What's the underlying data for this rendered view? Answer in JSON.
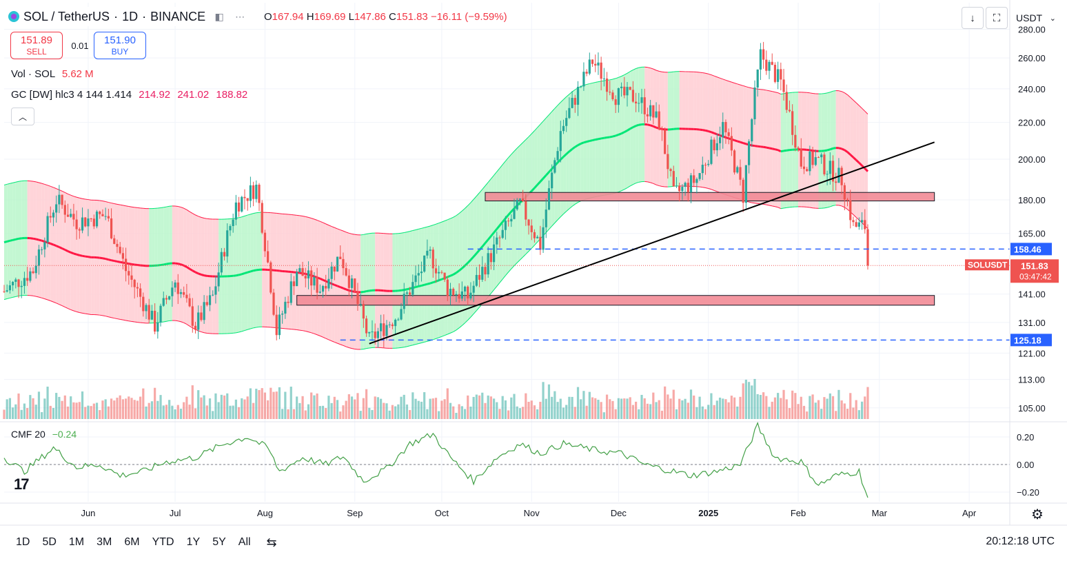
{
  "header": {
    "symbol": "SOL / TetherUS",
    "separator": "·",
    "interval": "1D",
    "exchange": "BINANCE",
    "ohlc_label_o": "O",
    "ohlc": {
      "o_label": "O",
      "o": "167.94",
      "h_label": "H",
      "h": "169.69",
      "l_label": "L",
      "l": "147.86",
      "c_label": "C",
      "c": "151.83",
      "change": "−16.11 (−9.59%)"
    }
  },
  "trade": {
    "sell_price": "151.89",
    "sell_label": "SELL",
    "spread": "0.01",
    "buy_price": "151.90",
    "buy_label": "BUY"
  },
  "legend": {
    "vol_label": "Vol · SOL",
    "vol_value": "5.62 M",
    "gc_label": "GC [DW] hlc3 4 144 1.414",
    "gc_v1": "214.92",
    "gc_v2": "241.02",
    "gc_v3": "188.82",
    "cmf_label": "CMF 20",
    "cmf_value": "−0.24"
  },
  "toolbar": {
    "currency": "USDT",
    "download_icon": "download-icon",
    "fullscreen_icon": "fullscreen-icon",
    "settings_icon": "gear-icon",
    "calendar_icon": "calendar-range-icon"
  },
  "timeframes": [
    "1D",
    "5D",
    "1M",
    "3M",
    "6M",
    "YTD",
    "1Y",
    "5Y",
    "All"
  ],
  "clock": "20:12:18 UTC",
  "colors": {
    "up": "#26a69a",
    "down": "#ef5350",
    "band_green": "#b9f6ca",
    "band_pink": "#ffcdd2",
    "basis_green": "#00e676",
    "basis_pink": "#ff1744",
    "cmf": "#43a047",
    "blue": "#2962ff"
  },
  "chart_data": {
    "type": "candlestick",
    "symbol": "SOLUSDT",
    "last_price": "151.83",
    "countdown": "03:47:42",
    "price_axis": {
      "scale": "log",
      "ticks": [
        "280.00",
        "260.00",
        "240.00",
        "220.00",
        "200.00",
        "180.00",
        "165.00",
        "141.00",
        "131.00",
        "121.00",
        "113.00",
        "105.00"
      ],
      "range": [
        102,
        300
      ]
    },
    "cmf_axis": {
      "ticks": [
        "0.20",
        "0.00",
        "−0.20"
      ],
      "range": [
        -0.27,
        0.3
      ]
    },
    "x_labels": [
      "Jun",
      "Jul",
      "Aug",
      "Sep",
      "Oct",
      "Nov",
      "Dec",
      "2025",
      "Feb",
      "Mar",
      "Apr"
    ],
    "date_range": [
      "2024-05-03",
      "2025-04-15"
    ],
    "horizontal_levels": [
      {
        "value": 158.46,
        "label": "158.46",
        "style": "dashed"
      },
      {
        "value": 125.18,
        "label": "125.18",
        "style": "dashed"
      }
    ],
    "zones": [
      {
        "from": "2024-10-16",
        "to": "2025-03-20",
        "low": 179.5,
        "high": 183.5
      },
      {
        "from": "2024-08-12",
        "to": "2025-03-20",
        "low": 137,
        "high": 140.5
      }
    ],
    "trendline": [
      [
        "2024-09-06",
        124
      ],
      [
        "2025-03-20",
        209
      ]
    ],
    "key_points": [
      [
        "2024-05-03",
        142
      ],
      [
        "2024-05-13",
        150
      ],
      [
        "2024-05-21",
        180
      ],
      [
        "2024-05-28",
        170
      ],
      [
        "2024-06-07",
        173
      ],
      [
        "2024-06-14",
        150
      ],
      [
        "2024-06-24",
        130
      ],
      [
        "2024-07-01",
        146
      ],
      [
        "2024-07-08",
        130
      ],
      [
        "2024-07-14",
        140
      ],
      [
        "2024-07-22",
        178
      ],
      [
        "2024-07-29",
        186
      ],
      [
        "2024-08-05",
        128
      ],
      [
        "2024-08-12",
        150
      ],
      [
        "2024-08-20",
        143
      ],
      [
        "2024-08-27",
        156
      ],
      [
        "2024-09-06",
        125
      ],
      [
        "2024-09-15",
        133
      ],
      [
        "2024-09-27",
        156
      ],
      [
        "2024-10-03",
        143
      ],
      [
        "2024-10-10",
        140
      ],
      [
        "2024-10-18",
        156
      ],
      [
        "2024-10-28",
        178
      ],
      [
        "2024-11-04",
        160
      ],
      [
        "2024-11-11",
        215
      ],
      [
        "2024-11-22",
        258
      ],
      [
        "2024-11-30",
        236
      ],
      [
        "2024-12-07",
        235
      ],
      [
        "2024-12-15",
        220
      ],
      [
        "2024-12-20",
        182
      ],
      [
        "2024-12-28",
        190
      ],
      [
        "2025-01-06",
        218
      ],
      [
        "2025-01-13",
        182
      ],
      [
        "2025-01-19",
        262
      ],
      [
        "2025-01-26",
        244
      ],
      [
        "2025-02-02",
        198
      ],
      [
        "2025-02-07",
        200
      ],
      [
        "2025-02-16",
        190
      ],
      [
        "2025-02-20",
        168
      ],
      [
        "2025-02-24",
        168
      ],
      [
        "2025-02-25",
        151.83
      ]
    ],
    "series": [
      {
        "name": "Vol · SOL",
        "type": "volume"
      },
      {
        "name": "GC [DW]",
        "type": "band"
      },
      {
        "name": "CMF 20",
        "type": "line",
        "points": [
          [
            "2024-05-03",
            0.05
          ],
          [
            "2024-05-10",
            -0.05
          ],
          [
            "2024-05-20",
            0.12
          ],
          [
            "2024-05-28",
            -0.02
          ],
          [
            "2024-06-05",
            0.0
          ],
          [
            "2024-06-12",
            -0.08
          ],
          [
            "2024-06-20",
            -0.05
          ],
          [
            "2024-06-28",
            0.02
          ],
          [
            "2024-07-08",
            0.05
          ],
          [
            "2024-07-18",
            0.15
          ],
          [
            "2024-07-26",
            0.2
          ],
          [
            "2024-08-02",
            0.12
          ],
          [
            "2024-08-06",
            -0.05
          ],
          [
            "2024-08-14",
            0.05
          ],
          [
            "2024-08-22",
            0.0
          ],
          [
            "2024-08-28",
            0.06
          ],
          [
            "2024-09-04",
            -0.12
          ],
          [
            "2024-09-12",
            -0.03
          ],
          [
            "2024-09-20",
            0.15
          ],
          [
            "2024-09-28",
            0.22
          ],
          [
            "2024-10-04",
            0.05
          ],
          [
            "2024-10-12",
            -0.12
          ],
          [
            "2024-10-20",
            0.05
          ],
          [
            "2024-10-28",
            0.15
          ],
          [
            "2024-11-04",
            0.08
          ],
          [
            "2024-11-12",
            0.15
          ],
          [
            "2024-11-24",
            0.1
          ],
          [
            "2024-12-02",
            0.08
          ],
          [
            "2024-12-10",
            0.0
          ],
          [
            "2024-12-18",
            -0.04
          ],
          [
            "2024-12-26",
            -0.08
          ],
          [
            "2025-01-04",
            -0.05
          ],
          [
            "2025-01-12",
            0.0
          ],
          [
            "2025-01-18",
            0.28
          ],
          [
            "2025-01-24",
            0.05
          ],
          [
            "2025-02-02",
            0.02
          ],
          [
            "2025-02-08",
            -0.15
          ],
          [
            "2025-02-14",
            -0.08
          ],
          [
            "2025-02-22",
            -0.05
          ],
          [
            "2025-02-25",
            -0.24
          ]
        ]
      }
    ]
  }
}
